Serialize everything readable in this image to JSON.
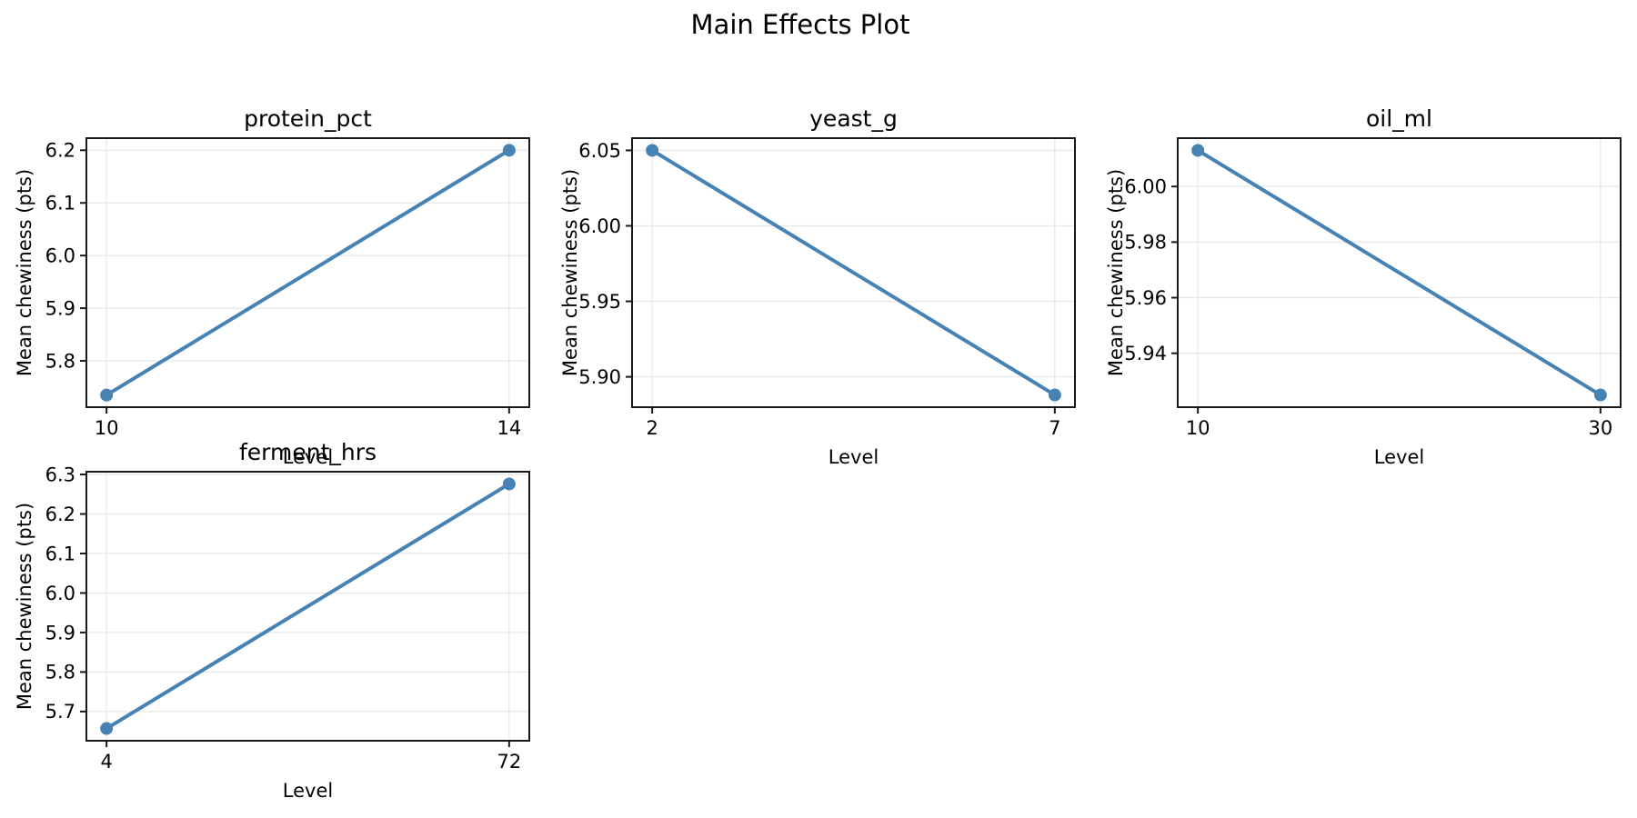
{
  "figure": {
    "title": "Main Effects Plot"
  },
  "colors": {
    "line": "#4682B4",
    "marker": "#4682B4",
    "grid": "#e8e8e8",
    "spine": "#1a1a1a",
    "text": "#000000",
    "background": "#ffffff"
  },
  "chart_data": [
    {
      "type": "line",
      "title": "protein_pct",
      "xlabel": "Level",
      "ylabel": "Mean chewiness (pts)",
      "categories": [
        "10",
        "14"
      ],
      "values": [
        5.735,
        6.2
      ],
      "y_ticks": [
        "5.8",
        "5.9",
        "6.0",
        "6.1",
        "6.2"
      ],
      "ylim": [
        5.712,
        6.223
      ],
      "grid": true,
      "legend": null
    },
    {
      "type": "line",
      "title": "yeast_g",
      "xlabel": "Level",
      "ylabel": "Mean chewiness (pts)",
      "categories": [
        "2",
        "7"
      ],
      "values": [
        6.05,
        5.888
      ],
      "y_ticks": [
        "5.90",
        "5.95",
        "6.00",
        "6.05"
      ],
      "ylim": [
        5.8799,
        6.0581
      ],
      "grid": true,
      "legend": null
    },
    {
      "type": "line",
      "title": "oil_ml",
      "xlabel": "Level",
      "ylabel": "Mean chewiness (pts)",
      "categories": [
        "10",
        "30"
      ],
      "values": [
        6.013,
        5.925
      ],
      "y_ticks": [
        "5.94",
        "5.96",
        "5.98",
        "6.00"
      ],
      "ylim": [
        5.9206,
        6.0174
      ],
      "grid": true,
      "legend": null
    },
    {
      "type": "line",
      "title": "ferment_hrs",
      "xlabel": "Level",
      "ylabel": "Mean chewiness (pts)",
      "categories": [
        "4",
        "72"
      ],
      "values": [
        5.657,
        6.276
      ],
      "y_ticks": [
        "5.7",
        "5.8",
        "5.9",
        "6.0",
        "6.1",
        "6.2",
        "6.3"
      ],
      "ylim": [
        5.626,
        6.307
      ],
      "grid": true,
      "legend": null
    }
  ]
}
